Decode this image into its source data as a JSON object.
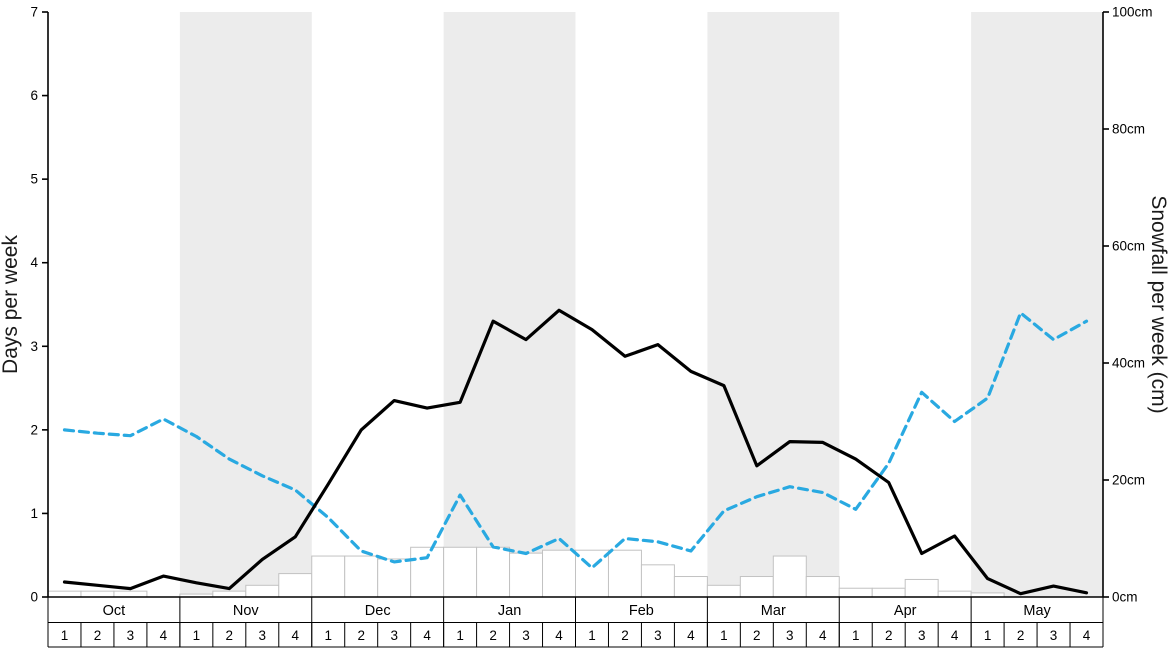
{
  "chart_data": {
    "type": "line",
    "title": "",
    "months": [
      "Oct",
      "Nov",
      "Dec",
      "Jan",
      "Feb",
      "Mar",
      "Apr",
      "May"
    ],
    "week_labels": [
      "1",
      "2",
      "3",
      "4"
    ],
    "y_left": {
      "label": "Days per week",
      "min": 0,
      "max": 7,
      "tick_values": [
        0,
        1,
        2,
        3,
        4,
        5,
        6,
        7
      ],
      "tick_labels": [
        "0",
        "1",
        "2",
        "3",
        "4",
        "5",
        "6",
        "7"
      ]
    },
    "y_right": {
      "label": "Snowfall per week (cm)",
      "min": 0,
      "max": 100,
      "tick_values": [
        0,
        20,
        40,
        60,
        80,
        100
      ],
      "tick_labels": [
        "0cm",
        "20cm",
        "40cm",
        "60cm",
        "80cm",
        "100cm"
      ]
    },
    "series": [
      {
        "name": "days-per-week-black-solid",
        "axis": "left",
        "line_style": "solid",
        "color": "#000000",
        "values": [
          0.18,
          0.14,
          0.1,
          0.25,
          0.17,
          0.1,
          0.45,
          0.72,
          1.35,
          2.0,
          2.35,
          2.26,
          2.33,
          3.3,
          3.08,
          3.43,
          3.2,
          2.88,
          3.02,
          2.7,
          2.53,
          1.57,
          1.86,
          1.85,
          1.65,
          1.37,
          0.52,
          0.73,
          0.22,
          0.04,
          0.13,
          0.05
        ]
      },
      {
        "name": "days-per-week-blue-dashed",
        "axis": "left",
        "line_style": "dashed",
        "color": "#29a9e1",
        "values": [
          2.0,
          1.96,
          1.93,
          2.13,
          1.92,
          1.65,
          1.45,
          1.28,
          0.95,
          0.55,
          0.42,
          0.47,
          1.22,
          0.6,
          0.52,
          0.7,
          0.35,
          0.7,
          0.66,
          0.55,
          1.03,
          1.2,
          1.32,
          1.25,
          1.05,
          1.6,
          2.45,
          2.1,
          2.38,
          3.4,
          3.08,
          3.3
        ]
      }
    ],
    "bars": {
      "name": "snowfall-per-week-bars",
      "axis": "right",
      "fill": "#ffffff",
      "stroke": "#c2c2c2",
      "values_cm": [
        1,
        1,
        1,
        0,
        0.5,
        1,
        2,
        4,
        7,
        7,
        6.5,
        8.5,
        8.5,
        8.5,
        7.5,
        8,
        8,
        8,
        5.5,
        3.5,
        2,
        3.5,
        7,
        3.5,
        1.5,
        1.5,
        3,
        1,
        0.7,
        0,
        0,
        0
      ]
    },
    "band_color": "#ececec",
    "axis_color": "#000000",
    "grid": "off",
    "legend_position": "none"
  }
}
